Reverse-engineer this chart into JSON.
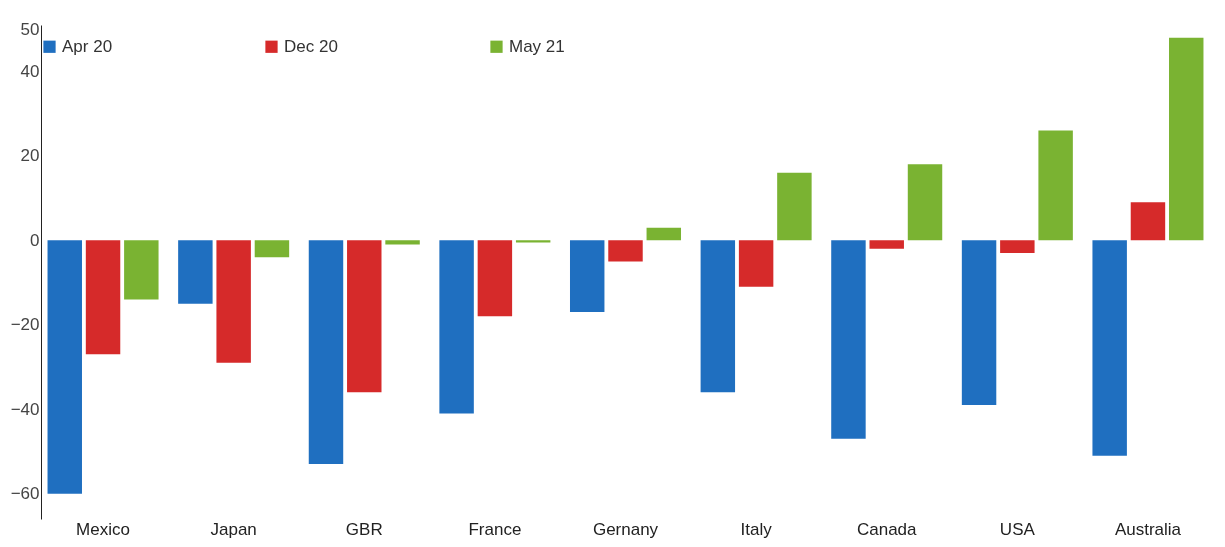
{
  "chart_data": {
    "type": "bar",
    "categories": [
      "Mexico",
      "Japan",
      "GBR",
      "France",
      "Gernany",
      "Italy",
      "Canada",
      "USA",
      "Australia"
    ],
    "series": [
      {
        "name": "Apr 20",
        "color": "#1f6fc0",
        "values": [
          -60,
          -15,
          -53,
          -41,
          -17,
          -36,
          -47,
          -39,
          -51
        ]
      },
      {
        "name": "Dec 20",
        "color": "#d62a2a",
        "values": [
          -27,
          -29,
          -36,
          -18,
          -5,
          -11,
          -2,
          -3,
          9
        ]
      },
      {
        "name": "May 21",
        "color": "#7ab332",
        "values": [
          -14,
          -4,
          -1,
          -0.5,
          3,
          16,
          18,
          26,
          48
        ]
      }
    ],
    "ylim": [
      -66,
      51
    ],
    "yticks": [
      50,
      40,
      20,
      0,
      -20,
      -40,
      -60
    ],
    "grid": false,
    "legend": "top"
  }
}
